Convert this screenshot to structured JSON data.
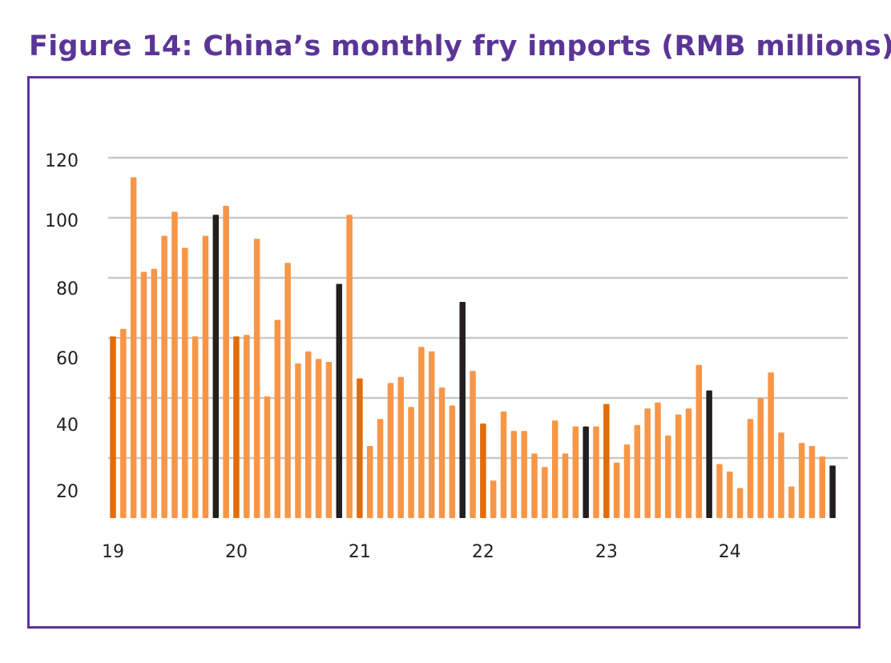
{
  "title": "Figure 14: China’s monthly fry imports (RMB millions).",
  "colors": {
    "normal": "#F79646",
    "jan": "#E36C09",
    "nov": "#231F20",
    "grid": "#C8C8C8",
    "frame": "#5B3596"
  },
  "chart_data": {
    "type": "bar",
    "title": "Figure 14: China’s monthly fry imports (RMB millions).",
    "xlabel": "",
    "ylabel": "RMB millions",
    "ylim": [
      0,
      120
    ],
    "grid": true,
    "legend": "none",
    "y_ticks": [
      "120",
      "100",
      "80",
      "60",
      "40",
      "20"
    ],
    "x_ticks": [
      "19",
      "20",
      "21",
      "22",
      "23",
      "24"
    ],
    "start": "2019-01",
    "end": "2024-11",
    "values": [
      60.5,
      63,
      113.5,
      82,
      83,
      94,
      102,
      90,
      60.5,
      94,
      101,
      104,
      60.5,
      61,
      93,
      40.5,
      66,
      85,
      51.5,
      55.5,
      53,
      52,
      78,
      101,
      46.5,
      24,
      33,
      45,
      47,
      37,
      57,
      55.5,
      43.5,
      37.5,
      72,
      49,
      31.5,
      12.5,
      35.5,
      29,
      29,
      21.5,
      17,
      32.5,
      21.5,
      30.5,
      30.5,
      30.5,
      38,
      18.5,
      24.5,
      31,
      36.5,
      38.5,
      27.5,
      34.5,
      36.5,
      51,
      42.5,
      18,
      15.5,
      10,
      33,
      40,
      48.5,
      28.5,
      10.5,
      25,
      24,
      20.5,
      17.5
    ],
    "roles": [
      "jan",
      "normal",
      "normal",
      "normal",
      "normal",
      "normal",
      "normal",
      "normal",
      "normal",
      "normal",
      "nov",
      "normal",
      "jan",
      "normal",
      "normal",
      "normal",
      "normal",
      "normal",
      "normal",
      "normal",
      "normal",
      "normal",
      "nov",
      "normal",
      "jan",
      "normal",
      "normal",
      "normal",
      "normal",
      "normal",
      "normal",
      "normal",
      "normal",
      "normal",
      "nov",
      "normal",
      "jan",
      "normal",
      "normal",
      "normal",
      "normal",
      "normal",
      "normal",
      "normal",
      "normal",
      "normal",
      "nov",
      "normal",
      "jan",
      "normal",
      "normal",
      "normal",
      "normal",
      "normal",
      "normal",
      "normal",
      "normal",
      "normal",
      "nov",
      "normal",
      "normal",
      "normal",
      "normal",
      "normal",
      "normal",
      "normal",
      "normal",
      "normal",
      "normal",
      "normal",
      "nov"
    ]
  }
}
